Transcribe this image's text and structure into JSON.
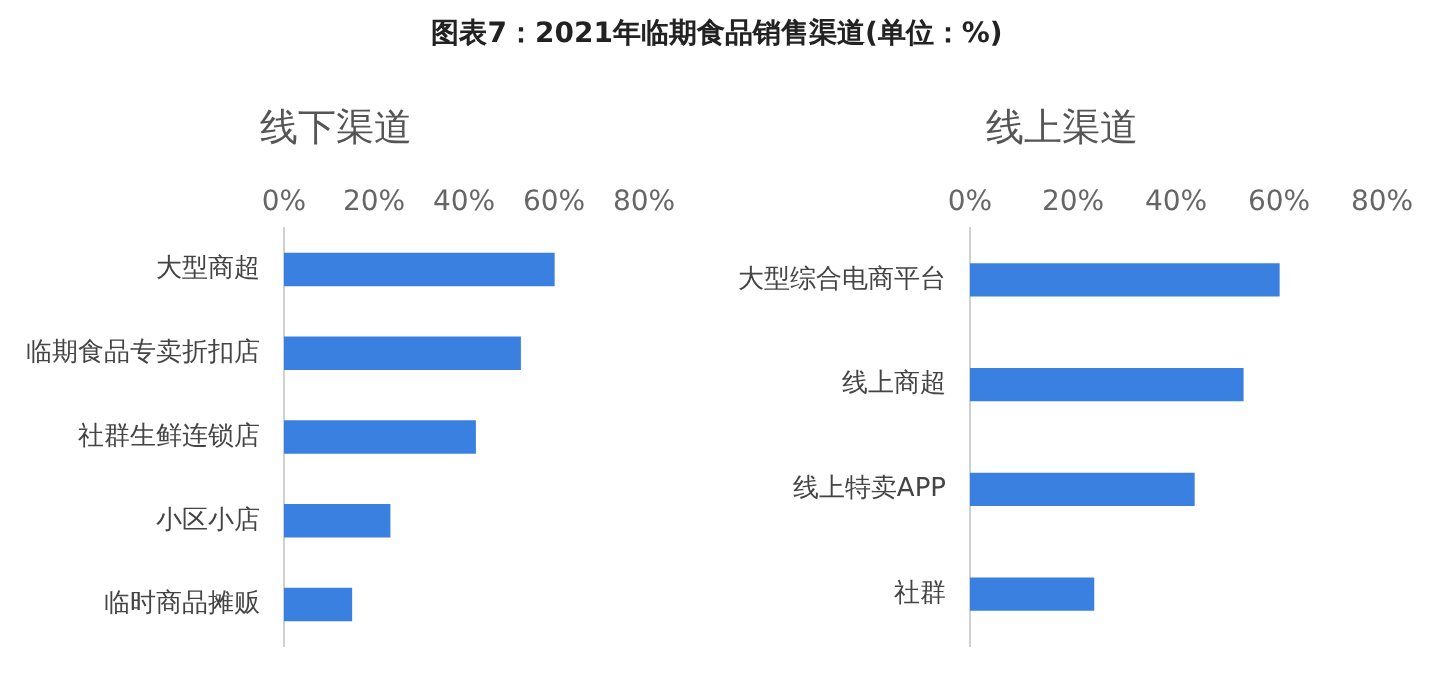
{
  "chart_data": [
    {
      "type": "bar",
      "orientation": "horizontal",
      "title": "图表7：2021年临期食品销售渠道(单位：%)",
      "subtitle": "线下渠道",
      "categories": [
        "大型商超",
        "临期食品专卖折扣店",
        "社群生鲜连锁店",
        "小区小店",
        "临时商品摊贩"
      ],
      "values": [
        60,
        52.5,
        42.5,
        23.5,
        15
      ],
      "color": "#3a80e0",
      "xlim": [
        0,
        80
      ],
      "xticks": [
        {
          "value": 0,
          "label": "0%"
        },
        {
          "value": 20,
          "label": "20%"
        },
        {
          "value": 40,
          "label": "40%"
        },
        {
          "value": 60,
          "label": "60%"
        },
        {
          "value": 80,
          "label": "80%"
        }
      ],
      "grid": false,
      "legend": false
    },
    {
      "type": "bar",
      "orientation": "horizontal",
      "subtitle": "线上渠道",
      "categories": [
        "大型综合电商平台",
        "线上商超",
        "线上特卖APP",
        "社群"
      ],
      "values": [
        60,
        53,
        43.5,
        24
      ],
      "color": "#3a80e0",
      "xlim": [
        0,
        80
      ],
      "xticks": [
        {
          "value": 0,
          "label": "0%"
        },
        {
          "value": 20,
          "label": "20%"
        },
        {
          "value": 40,
          "label": "40%"
        },
        {
          "value": 60,
          "label": "60%"
        },
        {
          "value": 80,
          "label": "80%"
        }
      ],
      "grid": false,
      "legend": false
    }
  ]
}
